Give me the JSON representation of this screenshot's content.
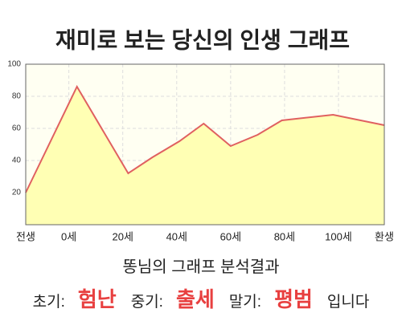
{
  "chart_data": {
    "type": "area",
    "title": "재미로 보는 당신의 인생 그래프",
    "x": [
      -16,
      3,
      22,
      31,
      41,
      50,
      60,
      70,
      79,
      98,
      117
    ],
    "values": [
      20,
      86,
      32,
      42,
      52,
      63,
      49,
      56,
      65,
      68.5,
      62
    ],
    "xlim": [
      -16,
      117
    ],
    "xticks": [
      {
        "value": -16,
        "label": "전생"
      },
      {
        "value": 0,
        "label": "0세"
      },
      {
        "value": 20,
        "label": "20세"
      },
      {
        "value": 40,
        "label": "40세"
      },
      {
        "value": 60,
        "label": "60세"
      },
      {
        "value": 80,
        "label": "80세"
      },
      {
        "value": 100,
        "label": "100세"
      },
      {
        "value": 117,
        "label": "환생"
      }
    ],
    "ylim": [
      0,
      100
    ],
    "yticks": [
      20,
      40,
      60,
      80,
      100
    ],
    "grid": true,
    "color": "#e06060",
    "fill": "#ffffb4"
  },
  "summary": {
    "heading": "똥님의 그래프 분석결과",
    "items": [
      {
        "label": "초기:",
        "value": "험난"
      },
      {
        "label": "중기:",
        "value": "출세"
      },
      {
        "label": "말기:",
        "value": "평범"
      }
    ],
    "suffix": "입니다"
  }
}
